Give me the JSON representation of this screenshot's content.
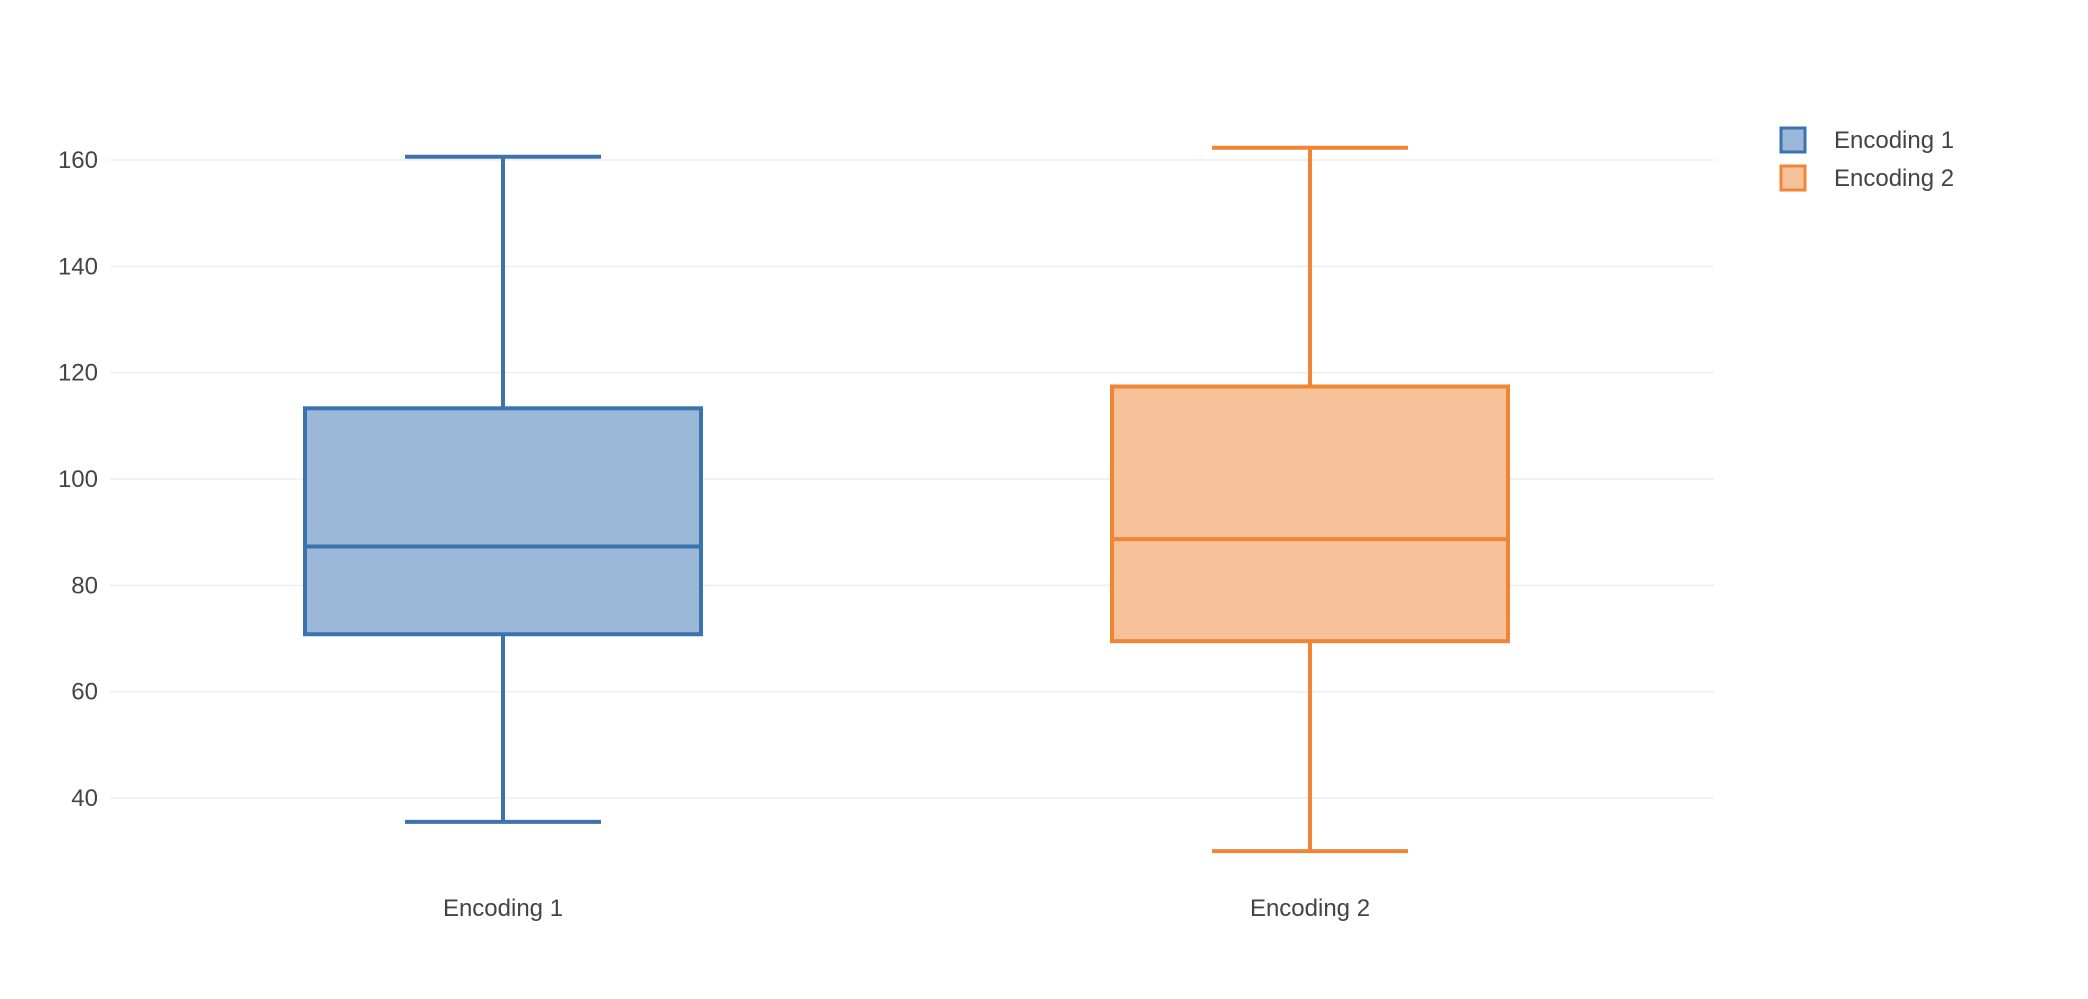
{
  "chart_data": {
    "type": "box",
    "title": "",
    "xlabel": "",
    "ylabel": "",
    "ylim": [
      23,
      175
    ],
    "yticks": [
      40,
      60,
      80,
      100,
      120,
      140,
      160
    ],
    "grid": true,
    "legend_position": "top-right",
    "categories": [
      "Encoding  1",
      "Encoding  2"
    ],
    "series": [
      {
        "name": "Encoding  1",
        "color": "#3b73af",
        "fill": "#9bb8d8",
        "min": 35.5,
        "q1": 70.8,
        "median": 87.3,
        "q3": 113.3,
        "max": 160.6
      },
      {
        "name": "Encoding  2",
        "color": "#f08536",
        "fill": "#f7c19a",
        "min": 30,
        "q1": 69.5,
        "median": 88.7,
        "q3": 117.4,
        "max": 162.3
      }
    ]
  }
}
